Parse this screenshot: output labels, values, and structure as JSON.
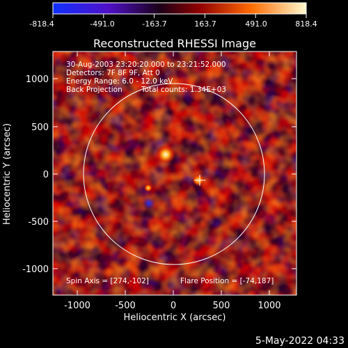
{
  "colorbar": {
    "ticks": [
      "-818.4",
      "-491.0",
      "-163.7",
      "163.7",
      "491.0",
      "818.4"
    ],
    "colors": [
      "#1030ff",
      "#5a10c0",
      "#2a0030",
      "#b00000",
      "#ff7000",
      "#fff8c0"
    ]
  },
  "plot": {
    "title": "Reconstructed RHESSI Image",
    "xlabel": "Heliocentric X (arcsec)",
    "ylabel": "Heliocentric Y (arcsec)",
    "xticks": [
      "-1000",
      "-500",
      "0",
      "500",
      "1000"
    ],
    "yticks": [
      "1000",
      "500",
      "0",
      "-500",
      "-1000"
    ],
    "info": {
      "line1": "30-Aug-2003 23:20:20.000 to 23:21:52.000",
      "line2": "Detectors: 7F 8F 9F, Att 0",
      "line3": "Energy Range: 6.0 - 12.0 keV",
      "line4_left": "Back Projection",
      "line4_right": "Total counts: 1.34E+03"
    },
    "spin_axis": "Spin Axis = [274,-102]",
    "flare_position": "Flare Position = [-74,187]"
  },
  "footer": {
    "timestamp": "5-May-2022 04:33"
  }
}
